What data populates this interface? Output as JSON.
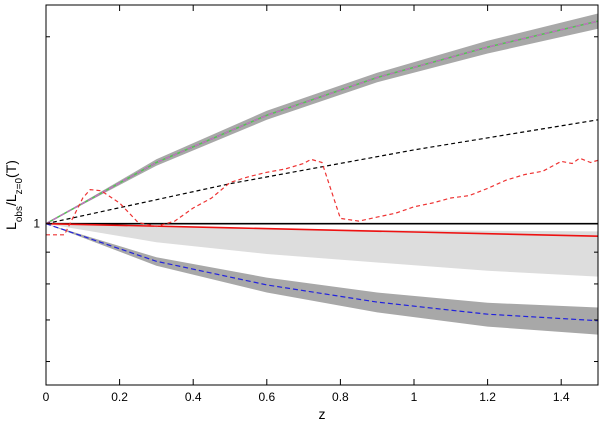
{
  "chart_data": {
    "type": "line",
    "xlabel": "z",
    "ylabel": "L_obs/L_z=0(T)",
    "xlim": [
      0,
      1.5
    ],
    "ylim": [
      0.55,
      2.25
    ],
    "x_ticks": [
      {
        "value": 0,
        "label": "0"
      },
      {
        "value": 0.2,
        "label": "0.2"
      },
      {
        "value": 0.4,
        "label": "0.4"
      },
      {
        "value": 0.6,
        "label": "0.6"
      },
      {
        "value": 0.8,
        "label": "0.8"
      },
      {
        "value": 1,
        "label": "1"
      },
      {
        "value": 1.2,
        "label": "1.2"
      },
      {
        "value": 1.4,
        "label": "1.4"
      }
    ],
    "y_ticks": [
      {
        "value": 1,
        "label": "1"
      }
    ],
    "bands": [
      {
        "color": "#a8a8a8",
        "x": [
          0,
          0.3,
          0.6,
          0.9,
          1.2,
          1.5
        ],
        "lower": [
          1.0,
          1.24,
          1.47,
          1.69,
          1.88,
          2.06
        ],
        "upper": [
          1.0,
          1.27,
          1.52,
          1.75,
          1.97,
          2.18
        ]
      },
      {
        "color": "#dddddd",
        "x": [
          0,
          0.3,
          0.6,
          0.9,
          1.2,
          1.5
        ],
        "lower": [
          1.0,
          0.934,
          0.894,
          0.866,
          0.84,
          0.822
        ],
        "upper": [
          1.0,
          0.99,
          0.982,
          0.977,
          0.974,
          0.972
        ]
      },
      {
        "color": "#a8a8a8",
        "x": [
          0,
          0.3,
          0.6,
          0.9,
          1.2,
          1.5
        ],
        "lower": [
          1.0,
          0.856,
          0.775,
          0.72,
          0.683,
          0.663
        ],
        "upper": [
          1.0,
          0.883,
          0.819,
          0.775,
          0.746,
          0.733
        ]
      }
    ],
    "series": [
      {
        "color": "#55c055",
        "dash": "none",
        "x": [
          0,
          0.3,
          0.6,
          0.9,
          1.2,
          1.5
        ],
        "values": [
          1.0,
          1.255,
          1.495,
          1.72,
          1.925,
          2.12
        ]
      },
      {
        "color": "#cc66cc",
        "dash": "5,3",
        "x": [
          0,
          0.3,
          0.6,
          0.9,
          1.2,
          1.5
        ],
        "values": [
          1.0,
          1.255,
          1.495,
          1.72,
          1.925,
          2.12
        ]
      },
      {
        "color": "#000000",
        "dash": "4,3",
        "x": [
          0,
          0.5,
          1.0,
          1.5
        ],
        "values": [
          1.0,
          1.16,
          1.315,
          1.47
        ]
      },
      {
        "color": "#000000",
        "dash": "none",
        "x": [
          0,
          1.5
        ],
        "values": [
          1.0,
          1.0
        ]
      },
      {
        "color": "#ee1111",
        "dash": "none",
        "x": [
          0,
          0.5,
          1.0,
          1.5
        ],
        "values": [
          1.0,
          0.985,
          0.97,
          0.955
        ]
      },
      {
        "color": "#2222dd",
        "dash": "5,3",
        "x": [
          0,
          0.3,
          0.6,
          0.9,
          1.2,
          1.5
        ],
        "values": [
          1.0,
          0.87,
          0.797,
          0.748,
          0.715,
          0.698
        ]
      },
      {
        "color": "#ee3333",
        "dash": "4,3",
        "x": [
          0,
          0.05,
          0.1,
          0.12,
          0.15,
          0.2,
          0.25,
          0.3,
          0.35,
          0.4,
          0.45,
          0.5,
          0.55,
          0.6,
          0.65,
          0.7,
          0.72,
          0.75,
          0.8,
          0.85,
          0.9,
          0.95,
          1.0,
          1.05,
          1.1,
          1.15,
          1.2,
          1.25,
          1.3,
          1.35,
          1.4,
          1.43,
          1.45,
          1.48,
          1.5
        ],
        "values": [
          0.96,
          0.96,
          1.1,
          1.135,
          1.13,
          1.08,
          1.005,
          0.99,
          1.01,
          1.06,
          1.1,
          1.165,
          1.19,
          1.21,
          1.225,
          1.25,
          1.27,
          1.255,
          1.02,
          1.01,
          1.025,
          1.04,
          1.065,
          1.08,
          1.1,
          1.11,
          1.14,
          1.175,
          1.2,
          1.215,
          1.26,
          1.25,
          1.275,
          1.255,
          1.265
        ]
      }
    ]
  }
}
